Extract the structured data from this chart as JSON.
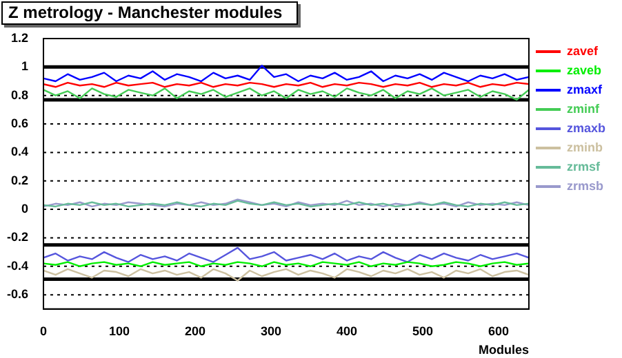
{
  "chart_data": {
    "type": "line",
    "title": "Z metrology - Manchester modules",
    "xlabel": "Modules",
    "x": [
      0,
      16,
      32,
      48,
      64,
      80,
      96,
      112,
      128,
      144,
      160,
      176,
      192,
      208,
      224,
      240,
      256,
      272,
      288,
      304,
      320,
      336,
      352,
      368,
      384,
      400,
      416,
      432,
      448,
      464,
      480,
      496,
      512,
      528,
      544,
      560,
      576,
      592,
      608,
      624,
      640
    ],
    "xlim": [
      0,
      640
    ],
    "xticks": [
      0,
      100,
      200,
      300,
      400,
      500,
      600
    ],
    "ylim": [
      -0.7,
      1.2
    ],
    "yticks": [
      -0.6,
      -0.4,
      -0.2,
      0,
      0.2,
      0.4,
      0.6,
      0.8,
      1,
      1.2
    ],
    "grid": "y",
    "legend": "right",
    "marker": "none",
    "line_style": "solid",
    "ref_lines": [
      {
        "axis": "y",
        "value": 1,
        "color": "#000000"
      },
      {
        "axis": "y",
        "value": 0.77,
        "color": "#000000"
      },
      {
        "axis": "y",
        "value": -0.25,
        "color": "#000000"
      },
      {
        "axis": "y",
        "value": -0.49,
        "color": "#000000"
      }
    ],
    "series": [
      {
        "name": "zavef",
        "color": "#ff0000",
        "values": [
          0.88,
          0.86,
          0.89,
          0.87,
          0.88,
          0.86,
          0.89,
          0.87,
          0.88,
          0.89,
          0.86,
          0.88,
          0.87,
          0.89,
          0.86,
          0.88,
          0.87,
          0.89,
          0.88,
          0.86,
          0.88,
          0.87,
          0.89,
          0.86,
          0.88,
          0.87,
          0.89,
          0.88,
          0.86,
          0.88,
          0.87,
          0.89,
          0.86,
          0.88,
          0.87,
          0.89,
          0.86,
          0.88,
          0.87,
          0.89,
          0.88
        ]
      },
      {
        "name": "zaveb",
        "color": "#00ee00",
        "values": [
          -0.38,
          -0.39,
          -0.37,
          -0.4,
          -0.38,
          -0.37,
          -0.39,
          -0.38,
          -0.4,
          -0.37,
          -0.39,
          -0.38,
          -0.37,
          -0.4,
          -0.38,
          -0.39,
          -0.37,
          -0.38,
          -0.4,
          -0.37,
          -0.39,
          -0.38,
          -0.4,
          -0.37,
          -0.38,
          -0.39,
          -0.37,
          -0.4,
          -0.38,
          -0.39,
          -0.37,
          -0.38,
          -0.4,
          -0.39,
          -0.37,
          -0.38,
          -0.4,
          -0.38,
          -0.37,
          -0.39,
          -0.38
        ]
      },
      {
        "name": "zmaxf",
        "color": "#0000ff",
        "values": [
          0.92,
          0.9,
          0.95,
          0.91,
          0.93,
          0.96,
          0.9,
          0.94,
          0.92,
          0.97,
          0.91,
          0.95,
          0.93,
          0.9,
          0.96,
          0.92,
          0.94,
          0.91,
          1.01,
          0.93,
          0.95,
          0.9,
          0.94,
          0.92,
          0.96,
          0.91,
          0.93,
          0.97,
          0.9,
          0.94,
          0.92,
          0.95,
          0.91,
          0.96,
          0.93,
          0.9,
          0.94,
          0.92,
          0.95,
          0.91,
          0.93
        ]
      },
      {
        "name": "zminf",
        "color": "#44cc55",
        "values": [
          0.84,
          0.8,
          0.83,
          0.78,
          0.85,
          0.81,
          0.79,
          0.84,
          0.82,
          0.8,
          0.85,
          0.78,
          0.83,
          0.81,
          0.84,
          0.79,
          0.82,
          0.85,
          0.8,
          0.83,
          0.78,
          0.84,
          0.81,
          0.83,
          0.79,
          0.85,
          0.82,
          0.8,
          0.84,
          0.78,
          0.83,
          0.81,
          0.85,
          0.8,
          0.82,
          0.84,
          0.79,
          0.83,
          0.81,
          0.77,
          0.84
        ]
      },
      {
        "name": "zmaxb",
        "color": "#5555dd",
        "values": [
          -0.34,
          -0.31,
          -0.36,
          -0.33,
          -0.35,
          -0.3,
          -0.34,
          -0.37,
          -0.32,
          -0.35,
          -0.33,
          -0.36,
          -0.31,
          -0.34,
          -0.37,
          -0.32,
          -0.27,
          -0.35,
          -0.33,
          -0.3,
          -0.36,
          -0.34,
          -0.32,
          -0.35,
          -0.31,
          -0.36,
          -0.33,
          -0.35,
          -0.3,
          -0.34,
          -0.37,
          -0.32,
          -0.35,
          -0.31,
          -0.34,
          -0.36,
          -0.32,
          -0.35,
          -0.33,
          -0.31,
          -0.34
        ]
      },
      {
        "name": "zminb",
        "color": "#ccc0a0",
        "values": [
          -0.43,
          -0.46,
          -0.42,
          -0.45,
          -0.48,
          -0.43,
          -0.44,
          -0.47,
          -0.42,
          -0.45,
          -0.43,
          -0.46,
          -0.44,
          -0.48,
          -0.42,
          -0.45,
          -0.5,
          -0.43,
          -0.47,
          -0.44,
          -0.42,
          -0.46,
          -0.43,
          -0.45,
          -0.48,
          -0.42,
          -0.44,
          -0.47,
          -0.43,
          -0.45,
          -0.42,
          -0.46,
          -0.44,
          -0.48,
          -0.43,
          -0.45,
          -0.42,
          -0.47,
          -0.44,
          -0.43,
          -0.46
        ]
      },
      {
        "name": "zrmsf",
        "color": "#66bb99",
        "values": [
          0.03,
          0.02,
          0.04,
          0.03,
          0.05,
          0.03,
          0.04,
          0.02,
          0.03,
          0.04,
          0.03,
          0.05,
          0.03,
          0.02,
          0.04,
          0.03,
          0.06,
          0.04,
          0.03,
          0.05,
          0.03,
          0.04,
          0.02,
          0.03,
          0.04,
          0.03,
          0.05,
          0.03,
          0.04,
          0.02,
          0.03,
          0.04,
          0.03,
          0.05,
          0.03,
          0.02,
          0.04,
          0.03,
          0.05,
          0.03,
          0.04
        ]
      },
      {
        "name": "zrmsb",
        "color": "#9999cc",
        "values": [
          0.02,
          0.04,
          0.03,
          0.05,
          0.02,
          0.04,
          0.03,
          0.05,
          0.04,
          0.03,
          0.02,
          0.04,
          0.03,
          0.05,
          0.03,
          0.04,
          0.07,
          0.05,
          0.03,
          0.04,
          0.02,
          0.05,
          0.03,
          0.04,
          0.03,
          0.06,
          0.03,
          0.04,
          0.02,
          0.04,
          0.03,
          0.05,
          0.03,
          0.04,
          0.02,
          0.05,
          0.03,
          0.04,
          0.03,
          0.05,
          0.03
        ]
      }
    ]
  }
}
